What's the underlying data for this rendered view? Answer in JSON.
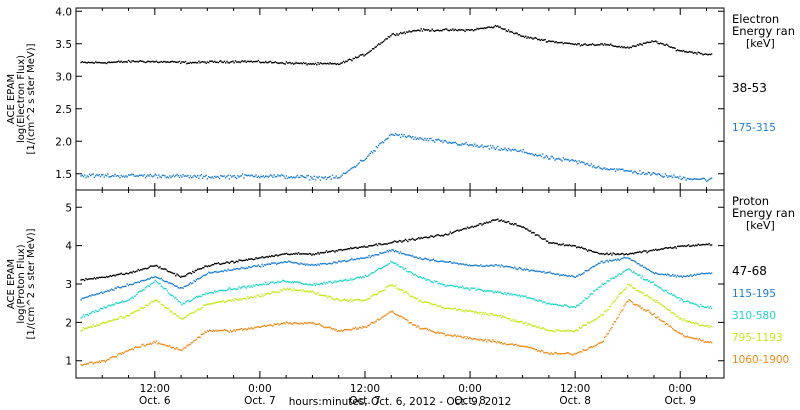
{
  "xaxis": {
    "label": "hours:minutes, Oct.  6, 2012 - Oct.  9, 2012",
    "ticks": [
      {
        "t": 12,
        "time": "12:00",
        "date": "Oct. 6"
      },
      {
        "t": 24,
        "time": "0:00",
        "date": "Oct. 7"
      },
      {
        "t": 36,
        "time": "12:00",
        "date": "Oct. 7"
      },
      {
        "t": 48,
        "time": "0:00",
        "date": "Oct. 8"
      },
      {
        "t": 60,
        "time": "12:00",
        "date": "Oct. 8"
      },
      {
        "t": 72,
        "time": "0:00",
        "date": "Oct. 9"
      }
    ]
  },
  "chart_data": [
    {
      "type": "scatter",
      "panel": "electron",
      "ylabel": [
        "ACE EPAM",
        "log(Electron Flux)",
        "[1/(cm^2 s ster MeV)]"
      ],
      "legend_title": [
        "Electron",
        "Energy ran",
        "[keV]"
      ],
      "xlim": [
        3,
        77
      ],
      "ylim": [
        1.25,
        4.05
      ],
      "yticks": [
        1.5,
        2.0,
        2.5,
        3.0,
        3.5,
        4.0
      ],
      "series": [
        {
          "name": "38-53",
          "color": "#000000",
          "scatter": 0.025,
          "x": [
            6,
            10,
            16,
            22,
            26,
            30,
            33,
            36,
            39,
            42,
            45,
            48,
            51,
            54,
            57,
            60,
            63,
            66,
            69,
            72,
            75
          ],
          "y": [
            3.22,
            3.24,
            3.22,
            3.24,
            3.22,
            3.2,
            3.2,
            3.35,
            3.65,
            3.72,
            3.72,
            3.72,
            3.78,
            3.62,
            3.55,
            3.5,
            3.5,
            3.45,
            3.55,
            3.4,
            3.35
          ]
        },
        {
          "name": "175-315",
          "color": "#1f7fd6",
          "scatter": 0.045,
          "x": [
            6,
            12,
            18,
            24,
            30,
            33,
            36,
            39,
            42,
            45,
            48,
            51,
            54,
            57,
            60,
            63,
            66,
            69,
            72,
            75
          ],
          "y": [
            1.48,
            1.48,
            1.46,
            1.48,
            1.45,
            1.45,
            1.75,
            2.12,
            2.05,
            2.0,
            1.95,
            1.9,
            1.85,
            1.75,
            1.7,
            1.6,
            1.55,
            1.5,
            1.45,
            1.42
          ]
        }
      ]
    },
    {
      "type": "scatter",
      "panel": "proton",
      "ylabel": [
        "ACE EPAM",
        "log(Proton Flux)",
        "[1/(cm^2 s ster MeV)]"
      ],
      "legend_title": [
        "Proton",
        "Energy ran",
        "[keV]"
      ],
      "xlim": [
        3,
        77
      ],
      "ylim": [
        0.55,
        5.45
      ],
      "yticks": [
        1,
        2,
        3,
        4,
        5
      ],
      "series": [
        {
          "name": "47-68",
          "color": "#000000",
          "scatter": 0.04,
          "x": [
            3,
            6,
            9,
            12,
            15,
            18,
            21,
            24,
            27,
            30,
            33,
            36,
            39,
            42,
            45,
            48,
            51,
            54,
            57,
            60,
            63,
            66,
            69,
            72,
            75
          ],
          "y": [
            3.1,
            3.2,
            3.3,
            3.5,
            3.2,
            3.5,
            3.6,
            3.7,
            3.8,
            3.8,
            3.9,
            4.0,
            4.1,
            4.2,
            4.3,
            4.5,
            4.7,
            4.5,
            4.1,
            4.0,
            3.8,
            3.8,
            3.9,
            4.0,
            4.05
          ]
        },
        {
          "name": "115-195",
          "color": "#1f7fd6",
          "scatter": 0.04,
          "x": [
            3,
            6,
            9,
            12,
            15,
            18,
            21,
            24,
            27,
            30,
            33,
            36,
            39,
            42,
            45,
            48,
            51,
            54,
            57,
            60,
            63,
            66,
            69,
            72,
            75
          ],
          "y": [
            2.6,
            2.8,
            3.0,
            3.2,
            2.9,
            3.3,
            3.4,
            3.5,
            3.6,
            3.5,
            3.6,
            3.7,
            3.9,
            3.7,
            3.6,
            3.5,
            3.5,
            3.4,
            3.3,
            3.2,
            3.6,
            3.7,
            3.3,
            3.2,
            3.3
          ]
        },
        {
          "name": "310-580",
          "color": "#1fd6c8",
          "scatter": 0.05,
          "x": [
            3,
            6,
            9,
            12,
            15,
            18,
            21,
            24,
            27,
            30,
            33,
            36,
            39,
            42,
            45,
            48,
            51,
            54,
            57,
            60,
            63,
            66,
            69,
            72,
            75
          ],
          "y": [
            2.1,
            2.4,
            2.6,
            3.1,
            2.5,
            2.8,
            2.9,
            3.0,
            3.1,
            3.0,
            3.1,
            3.2,
            3.6,
            3.2,
            3.0,
            2.9,
            2.8,
            2.7,
            2.5,
            2.4,
            3.0,
            3.4,
            3.0,
            2.6,
            2.4
          ]
        },
        {
          "name": "795-1193",
          "color": "#c8e61a",
          "scatter": 0.05,
          "x": [
            3,
            6,
            9,
            12,
            15,
            18,
            21,
            24,
            27,
            30,
            33,
            36,
            39,
            42,
            45,
            48,
            51,
            54,
            57,
            60,
            63,
            66,
            69,
            72,
            75
          ],
          "y": [
            1.8,
            2.0,
            2.2,
            2.6,
            2.1,
            2.5,
            2.6,
            2.7,
            2.9,
            2.8,
            2.6,
            2.6,
            3.0,
            2.6,
            2.4,
            2.3,
            2.2,
            2.0,
            1.8,
            1.8,
            2.2,
            3.0,
            2.6,
            2.1,
            1.9
          ]
        },
        {
          "name": "1060-1900",
          "color": "#f08a1a",
          "scatter": 0.05,
          "x": [
            3,
            6,
            9,
            12,
            15,
            18,
            21,
            24,
            27,
            30,
            33,
            36,
            39,
            42,
            45,
            48,
            51,
            54,
            57,
            60,
            63,
            66,
            69,
            72,
            75
          ],
          "y": [
            0.9,
            1.0,
            1.3,
            1.5,
            1.3,
            1.8,
            1.8,
            1.9,
            2.0,
            2.0,
            1.8,
            1.9,
            2.3,
            1.9,
            1.7,
            1.6,
            1.5,
            1.4,
            1.2,
            1.2,
            1.5,
            2.6,
            2.2,
            1.7,
            1.5
          ]
        }
      ]
    }
  ]
}
